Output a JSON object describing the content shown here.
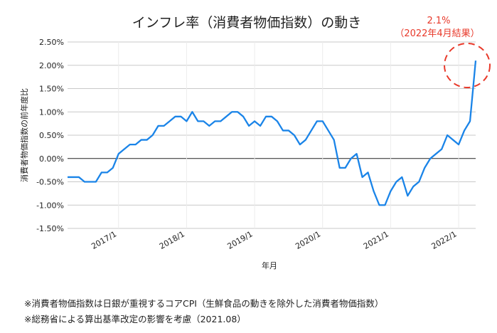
{
  "chart_data": {
    "type": "line",
    "title": "インフレ率（消費者物価指数）の動き",
    "xlabel": "年月",
    "ylabel": "消費者物価指数の前年度比",
    "ylim": [
      -1.5,
      2.5
    ],
    "yticks": [
      2.5,
      2.0,
      1.5,
      1.0,
      0.5,
      0.0,
      -0.5,
      -1.0,
      -1.5
    ],
    "ytick_labels": [
      "2.50%",
      "2.00%",
      "1.50%",
      "1.00%",
      "0.50%",
      "0.00%",
      "-0.50%",
      "-1.00%",
      "-1.50%"
    ],
    "xtick_labels": [
      "2017/1",
      "2018/1",
      "2019/1",
      "2020/1",
      "2021/1",
      "2022/1"
    ],
    "x_start": "2016/4",
    "x_end": "2022/4",
    "series": [
      {
        "name": "消費者物価指数",
        "color": "#1a84e8",
        "values": [
          -0.4,
          -0.4,
          -0.4,
          -0.5,
          -0.5,
          -0.5,
          -0.3,
          -0.3,
          -0.2,
          0.1,
          0.2,
          0.3,
          0.3,
          0.4,
          0.4,
          0.5,
          0.7,
          0.7,
          0.8,
          0.9,
          0.9,
          0.8,
          1.0,
          0.8,
          0.8,
          0.7,
          0.8,
          0.8,
          0.9,
          1.0,
          1.0,
          0.9,
          0.7,
          0.8,
          0.7,
          0.9,
          0.9,
          0.8,
          0.6,
          0.6,
          0.5,
          0.3,
          0.4,
          0.6,
          0.8,
          0.8,
          0.6,
          0.4,
          -0.2,
          -0.2,
          0.0,
          0.1,
          -0.4,
          -0.3,
          -0.7,
          -1.0,
          -1.0,
          -0.7,
          -0.5,
          -0.4,
          -0.8,
          -0.6,
          -0.5,
          -0.2,
          0.0,
          0.1,
          0.2,
          0.5,
          0.4,
          0.3,
          0.6,
          0.8,
          2.1
        ]
      }
    ],
    "annotation": {
      "line1": "2.1%",
      "line2": "（2022年4月結果）",
      "color": "#e8392a"
    },
    "grid": true
  },
  "notes": [
    "※消費者物価指数は日銀が重視するコアCPI（生鮮食品の動きを除外した消費者物価指数）",
    "※総務省による算出基準改定の影響を考慮（2021.08）"
  ]
}
